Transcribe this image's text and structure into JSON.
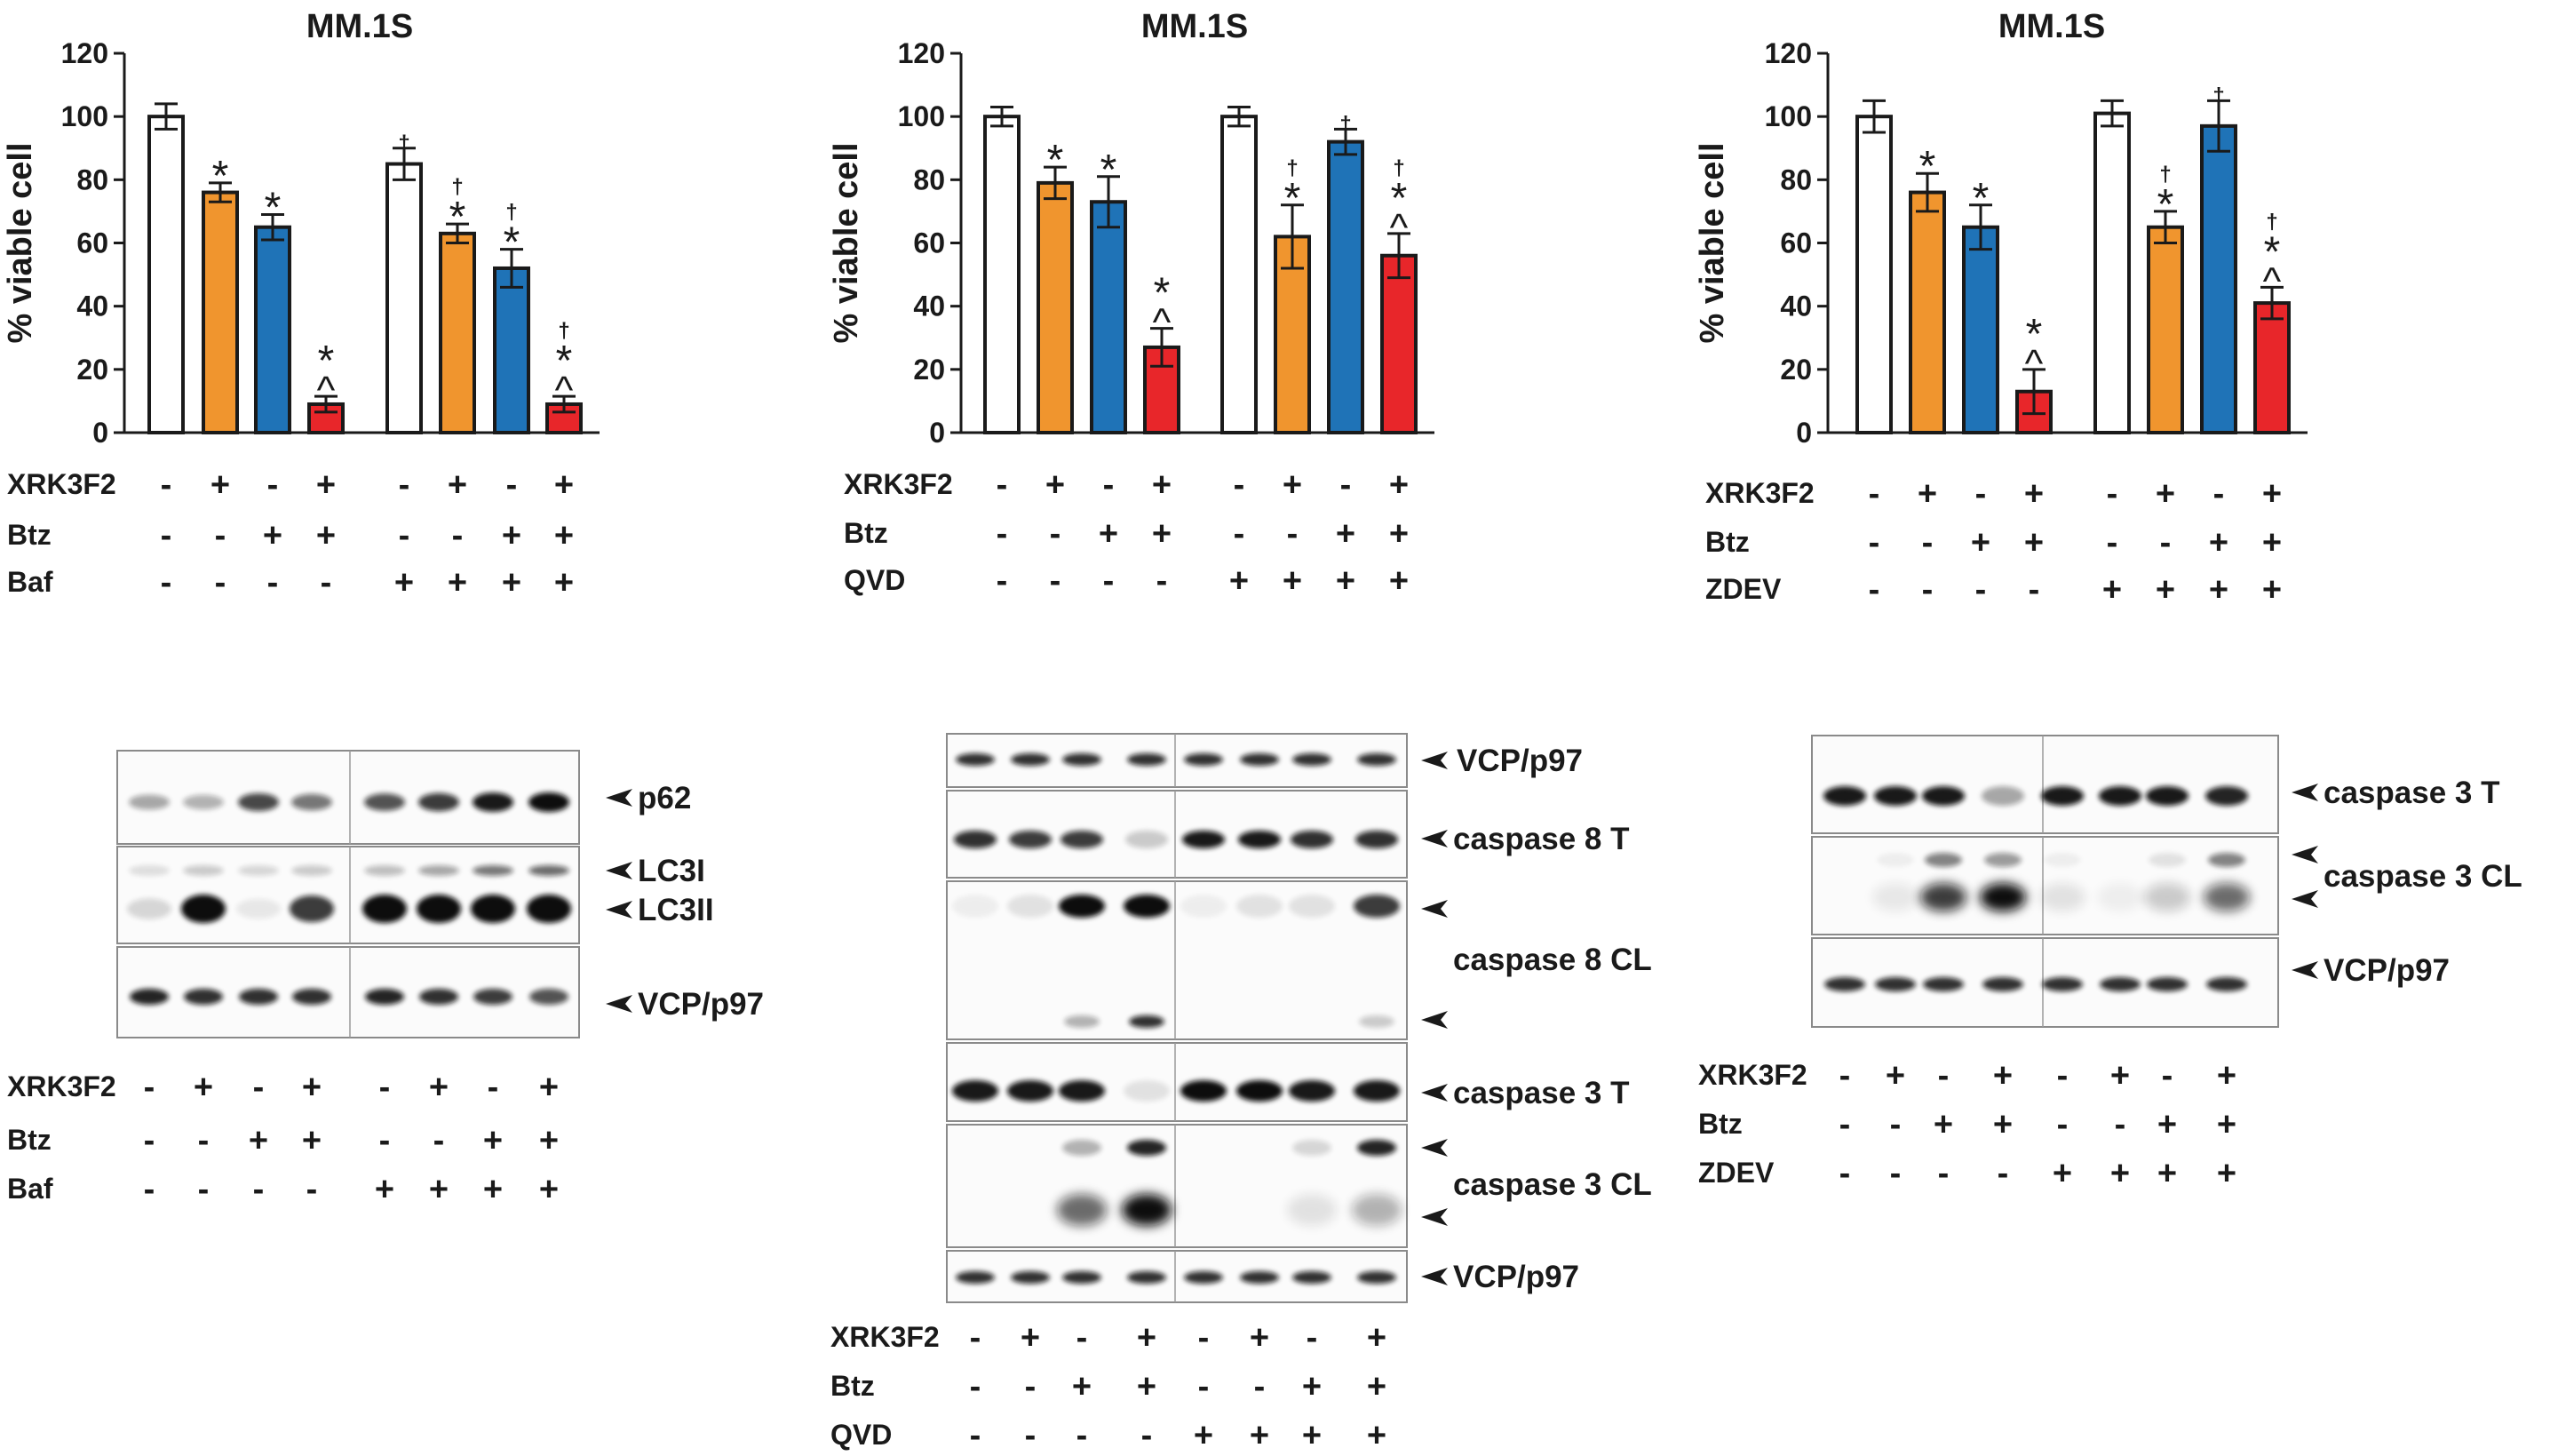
{
  "colors": {
    "control": "#ffffff",
    "xrk3f2": "#f0952e",
    "btz": "#1f73b7",
    "combo": "#e8262a",
    "outline": "#1a1a1a"
  },
  "chart_data": [
    {
      "type": "bar",
      "title": "MM.1S",
      "ylabel": "% viable cell",
      "ylim": [
        0,
        120
      ],
      "yticks": [
        "0",
        "20",
        "40",
        "60",
        "80",
        "100",
        "120"
      ],
      "values": [
        100,
        76,
        65,
        9,
        85,
        63,
        52,
        9
      ],
      "errors": [
        4,
        3,
        4,
        2.5,
        5,
        3,
        6,
        2.5
      ],
      "star": [
        false,
        true,
        true,
        true,
        false,
        true,
        true,
        true
      ],
      "caret": [
        false,
        false,
        false,
        true,
        false,
        false,
        false,
        true
      ],
      "dagger": [
        false,
        false,
        false,
        false,
        true,
        true,
        true,
        true
      ],
      "markers": {
        "star": "*",
        "caret": "^",
        "dagger": "†"
      },
      "conditions": [
        {
          "label": "XRK3F2",
          "signs": [
            "-",
            "+",
            "-",
            "+",
            "-",
            "+",
            "-",
            "+"
          ]
        },
        {
          "label": "Btz",
          "signs": [
            "-",
            "-",
            "+",
            "+",
            "-",
            "-",
            "+",
            "+"
          ]
        },
        {
          "label": "Baf",
          "signs": [
            "-",
            "-",
            "-",
            "-",
            "+",
            "+",
            "+",
            "+"
          ]
        }
      ]
    },
    {
      "type": "bar",
      "title": "MM.1S",
      "ylabel": "% viable cell",
      "ylim": [
        0,
        120
      ],
      "yticks": [
        "0",
        "20",
        "40",
        "60",
        "80",
        "100",
        "120"
      ],
      "values": [
        100,
        79,
        73,
        27,
        100,
        62,
        92,
        56
      ],
      "errors": [
        3,
        5,
        8,
        6,
        3,
        10,
        4,
        7
      ],
      "star": [
        false,
        true,
        true,
        true,
        false,
        true,
        false,
        true
      ],
      "caret": [
        false,
        false,
        false,
        true,
        false,
        false,
        false,
        true
      ],
      "dagger": [
        false,
        false,
        false,
        false,
        false,
        true,
        true,
        true
      ],
      "markers": {
        "star": "*",
        "caret": "^",
        "dagger": "†"
      },
      "conditions": [
        {
          "label": "XRK3F2",
          "signs": [
            "-",
            "+",
            "-",
            "+",
            "-",
            "+",
            "-",
            "+"
          ]
        },
        {
          "label": "Btz",
          "signs": [
            "-",
            "-",
            "+",
            "+",
            "-",
            "-",
            "+",
            "+"
          ]
        },
        {
          "label": "QVD",
          "signs": [
            "-",
            "-",
            "-",
            "-",
            "+",
            "+",
            "+",
            "+"
          ]
        }
      ]
    },
    {
      "type": "bar",
      "title": "MM.1S",
      "ylabel": "% viable cell",
      "ylim": [
        0,
        120
      ],
      "yticks": [
        "0",
        "20",
        "40",
        "60",
        "80",
        "100",
        "120"
      ],
      "values": [
        100,
        76,
        65,
        13,
        101,
        65,
        97,
        41
      ],
      "errors": [
        5,
        6,
        7,
        7,
        4,
        5,
        8,
        5
      ],
      "star": [
        false,
        true,
        true,
        true,
        false,
        true,
        false,
        true
      ],
      "caret": [
        false,
        false,
        false,
        true,
        false,
        false,
        false,
        true
      ],
      "dagger": [
        false,
        false,
        false,
        false,
        false,
        true,
        true,
        true
      ],
      "markers": {
        "star": "*",
        "caret": "^",
        "dagger": "†"
      },
      "conditions": [
        {
          "label": "XRK3F2",
          "signs": [
            "-",
            "+",
            "-",
            "+",
            "-",
            "+",
            "-",
            "+"
          ]
        },
        {
          "label": "Btz",
          "signs": [
            "-",
            "-",
            "+",
            "+",
            "-",
            "-",
            "+",
            "+"
          ]
        },
        {
          "label": "ZDEV",
          "signs": [
            "-",
            "-",
            "-",
            "-",
            "+",
            "+",
            "+",
            "+"
          ]
        }
      ]
    }
  ],
  "blots": [
    {
      "panels": [
        {
          "label": "p62",
          "marks": [
            "p62"
          ]
        },
        {
          "label": "LC3I / LC3II",
          "marks": [
            "LC3I",
            "LC3II"
          ]
        },
        {
          "label": "VCP/p97",
          "marks": [
            "VCP/p97"
          ]
        }
      ],
      "conditions": [
        {
          "label": "XRK3F2",
          "signs": [
            "-",
            "+",
            "-",
            "+",
            "-",
            "+",
            "-",
            "+"
          ]
        },
        {
          "label": "Btz",
          "signs": [
            "-",
            "-",
            "+",
            "+",
            "-",
            "-",
            "+",
            "+"
          ]
        },
        {
          "label": "Baf",
          "signs": [
            "-",
            "-",
            "-",
            "-",
            "+",
            "+",
            "+",
            "+"
          ]
        }
      ]
    },
    {
      "panels": [
        {
          "label": "VCP/p97",
          "marks": [
            "VCP/p97"
          ]
        },
        {
          "label": "caspase 8 T",
          "marks": [
            "caspase 8 T"
          ]
        },
        {
          "label": "caspase 8 CL",
          "marks": [
            "caspase 8 CL"
          ]
        },
        {
          "label": "caspase 3 T",
          "marks": [
            "caspase 3 T"
          ]
        },
        {
          "label": "caspase 3 CL",
          "marks": [
            "caspase 3 CL"
          ]
        },
        {
          "label": "VCP/p97",
          "marks": [
            "VCP/p97"
          ]
        }
      ],
      "conditions": [
        {
          "label": "XRK3F2",
          "signs": [
            "-",
            "+",
            "-",
            "+",
            "-",
            "+",
            "-",
            "+"
          ]
        },
        {
          "label": "Btz",
          "signs": [
            "-",
            "-",
            "+",
            "+",
            "-",
            "-",
            "+",
            "+"
          ]
        },
        {
          "label": "QVD",
          "signs": [
            "-",
            "-",
            "-",
            "-",
            "+",
            "+",
            "+",
            "+"
          ]
        }
      ]
    },
    {
      "panels": [
        {
          "label": "caspase 3 T",
          "marks": [
            "caspase 3 T"
          ]
        },
        {
          "label": "caspase 3 CL",
          "marks": [
            "caspase 3 CL"
          ]
        },
        {
          "label": "VCP/p97",
          "marks": [
            "VCP/p97"
          ]
        }
      ],
      "conditions": [
        {
          "label": "XRK3F2",
          "signs": [
            "-",
            "+",
            "-",
            "+",
            "-",
            "+",
            "-",
            "+"
          ]
        },
        {
          "label": "Btz",
          "signs": [
            "-",
            "-",
            "+",
            "+",
            "-",
            "-",
            "+",
            "+"
          ]
        },
        {
          "label": "ZDEV",
          "signs": [
            "-",
            "-",
            "-",
            "-",
            "+",
            "+",
            "+",
            "+"
          ]
        }
      ]
    }
  ]
}
